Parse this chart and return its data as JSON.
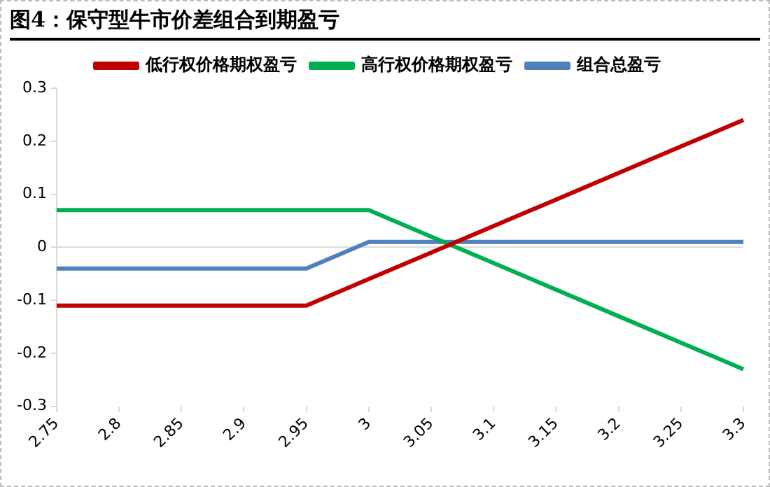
{
  "chart_data": {
    "type": "line",
    "title": "图4：保守型牛市价差组合到期盈亏",
    "categories": [
      "2.75",
      "2.8",
      "2.85",
      "2.9",
      "2.95",
      "3",
      "3.05",
      "3.1",
      "3.15",
      "3.2",
      "3.25",
      "3.3"
    ],
    "series": [
      {
        "name": "低行权价格期权盈亏",
        "color": "#c00000",
        "values": [
          -0.11,
          -0.11,
          -0.11,
          -0.11,
          -0.11,
          -0.06,
          -0.01,
          0.04,
          0.09,
          0.14,
          0.19,
          0.24
        ]
      },
      {
        "name": "高行权价格期权盈亏",
        "color": "#00b050",
        "values": [
          0.07,
          0.07,
          0.07,
          0.07,
          0.07,
          0.07,
          0.02,
          -0.03,
          -0.08,
          -0.13,
          -0.18,
          -0.23
        ]
      },
      {
        "name": "组合总盈亏",
        "color": "#4f81bd",
        "values": [
          -0.04,
          -0.04,
          -0.04,
          -0.04,
          -0.04,
          0.01,
          0.01,
          0.01,
          0.01,
          0.01,
          0.01,
          0.01
        ]
      }
    ],
    "ylim": [
      -0.3,
      0.3
    ],
    "yticks": [
      -0.3,
      -0.2,
      -0.1,
      0,
      0.1,
      0.2,
      0.3
    ],
    "ref_lines": [
      {
        "axis": "y",
        "value": 0,
        "color": "#d9d9d9"
      }
    ],
    "grid": false,
    "legend": "top",
    "marker": "none",
    "line_style": "solid"
  }
}
